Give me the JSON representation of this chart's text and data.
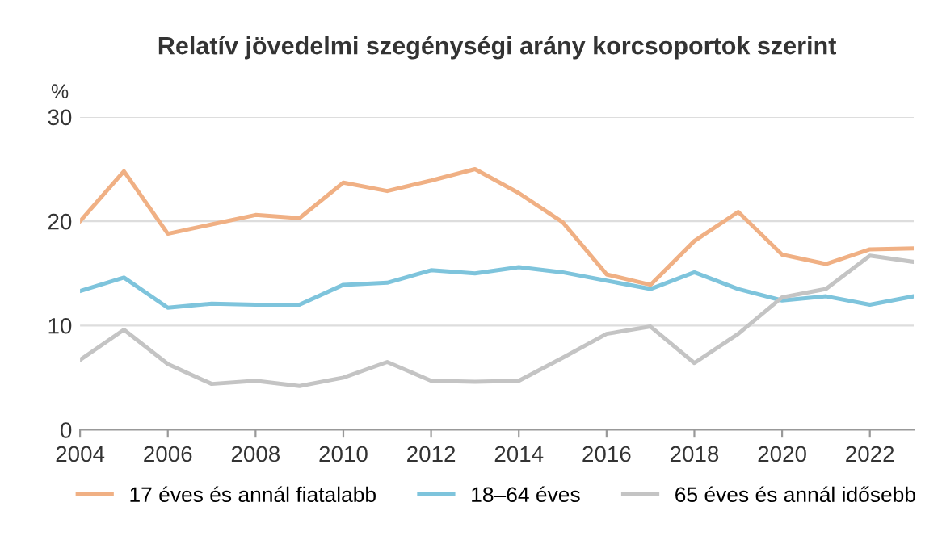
{
  "chart_data": {
    "type": "line",
    "title": "Relatív jövedelmi szegénységi arány korcsoportok szerint",
    "ylabel": "%",
    "x": [
      2004,
      2005,
      2006,
      2007,
      2008,
      2009,
      2010,
      2011,
      2012,
      2013,
      2014,
      2015,
      2016,
      2017,
      2018,
      2019,
      2020,
      2021,
      2022,
      2023
    ],
    "series": [
      {
        "name": "17 éves és annál fiatalabb",
        "color": "#f0b084",
        "values": [
          20,
          24.8,
          18.8,
          19.7,
          20.6,
          20.3,
          23.7,
          22.9,
          23.9,
          25.0,
          22.7,
          19.9,
          14.9,
          13.9,
          18.1,
          20.9,
          16.8,
          15.9,
          17.3,
          17.4
        ]
      },
      {
        "name": "18–64 éves",
        "color": "#7ec4dc",
        "values": [
          13.3,
          14.6,
          11.7,
          12.1,
          12.0,
          12.0,
          13.9,
          14.1,
          15.3,
          15.0,
          15.6,
          15.1,
          14.3,
          13.5,
          15.1,
          13.5,
          12.4,
          12.8,
          12.0,
          12.8
        ]
      },
      {
        "name": "65 éves és annál idősebb",
        "color": "#c4c4c4",
        "values": [
          6.7,
          9.6,
          6.3,
          4.4,
          4.7,
          4.2,
          5.0,
          6.5,
          4.7,
          4.6,
          4.7,
          6.9,
          9.2,
          9.9,
          6.4,
          9.2,
          12.7,
          13.5,
          16.7,
          16.1
        ]
      }
    ],
    "xlim": [
      2004,
      2023
    ],
    "xticks": [
      2004,
      2006,
      2008,
      2010,
      2012,
      2014,
      2016,
      2018,
      2020,
      2022
    ],
    "ylim": [
      0,
      30
    ],
    "yticks": [
      0,
      10,
      20,
      30
    ],
    "grid": "y",
    "legend": "bottom",
    "marker": "none",
    "line_style": "solid"
  }
}
